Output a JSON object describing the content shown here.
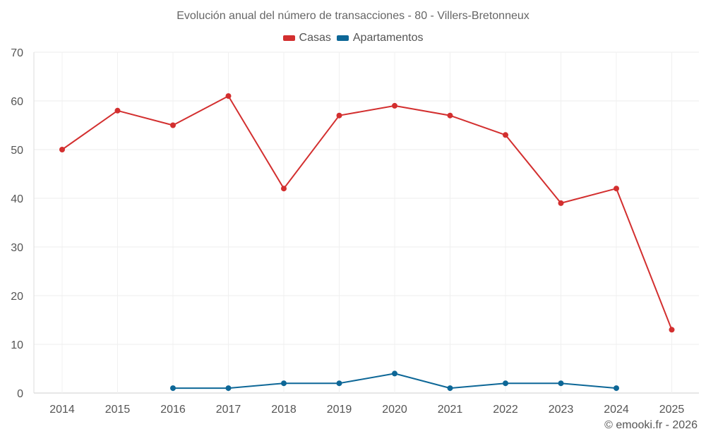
{
  "chart_data": {
    "type": "line",
    "title": "Evolución anual del número de transacciones - 80 - Villers-Bretonneux",
    "xlabel": "",
    "ylabel": "",
    "categories": [
      "2014",
      "2015",
      "2016",
      "2017",
      "2018",
      "2019",
      "2020",
      "2021",
      "2022",
      "2023",
      "2024",
      "2025"
    ],
    "ylim": [
      0,
      70
    ],
    "yticks": [
      0,
      10,
      20,
      30,
      40,
      50,
      60,
      70
    ],
    "grid": true,
    "legend_position": "top-center",
    "series": [
      {
        "name": "Casas",
        "color": "#d32f2f",
        "values": [
          50,
          58,
          55,
          61,
          42,
          57,
          59,
          57,
          53,
          39,
          42,
          13
        ]
      },
      {
        "name": "Apartamentos",
        "color": "#0d6797",
        "values": [
          null,
          null,
          1,
          1,
          2,
          2,
          4,
          1,
          2,
          2,
          1,
          null
        ]
      }
    ]
  },
  "footer": {
    "credit": "© emooki.fr - 2026"
  }
}
